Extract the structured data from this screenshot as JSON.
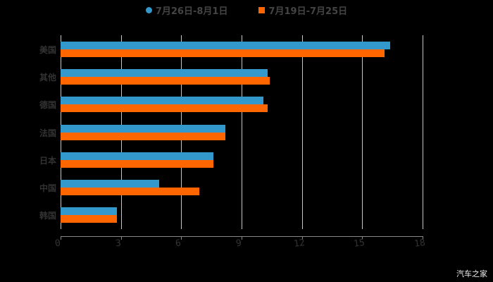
{
  "legend": {
    "series0": "7月26日-8月1日",
    "series1": "7月19日-7月25日"
  },
  "colors": {
    "series0": "#3399cc",
    "series1": "#ff6600",
    "grid": "#c8c8c8",
    "background": "#000000"
  },
  "watermark": "汽车之家",
  "axis": {
    "ticks": [
      "0",
      "3",
      "6",
      "9",
      "12",
      "15",
      "18"
    ]
  },
  "categories": [
    "美国",
    "其他",
    "德国",
    "法国",
    "日本",
    "中国",
    "韩国"
  ],
  "chart_data": {
    "type": "bar",
    "orientation": "horizontal",
    "title": "",
    "xlabel": "",
    "ylabel": "",
    "categories": [
      "美国",
      "其他",
      "德国",
      "法国",
      "日本",
      "中国",
      "韩国"
    ],
    "series": [
      {
        "name": "7月26日-8月1日",
        "color": "#3399cc",
        "values": [
          16.4,
          10.3,
          10.1,
          8.2,
          7.6,
          4.9,
          2.8
        ]
      },
      {
        "name": "7月19日-7月25日",
        "color": "#ff6600",
        "values": [
          16.1,
          10.4,
          10.3,
          8.2,
          7.6,
          6.9,
          2.8
        ]
      }
    ],
    "xlim": [
      0,
      18
    ],
    "xticks": [
      0,
      3,
      6,
      9,
      12,
      15,
      18
    ],
    "grid": "vertical",
    "legend_position": "top"
  }
}
